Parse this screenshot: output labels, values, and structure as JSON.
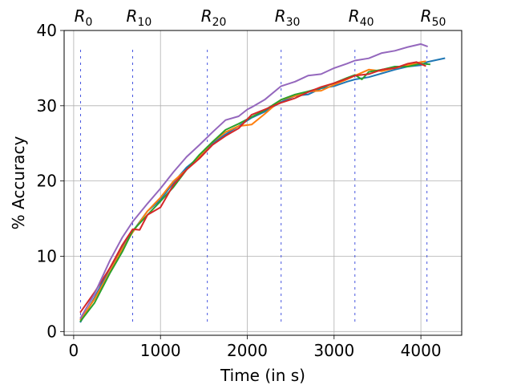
{
  "chart_data": {
    "type": "line",
    "xlabel": "Time (in s)",
    "ylabel": "% Accuracy",
    "xlim": [
      -110,
      4470
    ],
    "ylim": [
      -0.5,
      40
    ],
    "x_ticks": [
      0,
      1000,
      2000,
      3000,
      4000
    ],
    "y_ticks": [
      0,
      10,
      20,
      30,
      40
    ],
    "grid": true,
    "markers": [
      {
        "label": "R",
        "sub": "0",
        "x": 80
      },
      {
        "label": "R",
        "sub": "10",
        "x": 680
      },
      {
        "label": "R",
        "sub": "20",
        "x": 1540
      },
      {
        "label": "R",
        "sub": "30",
        "x": 2390
      },
      {
        "label": "R",
        "sub": "40",
        "x": 3240
      },
      {
        "label": "R",
        "sub": "50",
        "x": 4070
      }
    ],
    "series": [
      {
        "color": "#1f77b4",
        "x": [
          80,
          240,
          420,
          560,
          680,
          850,
          1000,
          1150,
          1300,
          1450,
          1600,
          1750,
          1900,
          2050,
          2200,
          2390,
          2550,
          2700,
          2850,
          3000,
          3150,
          3240,
          3400,
          3550,
          3700,
          3850,
          4000,
          4070,
          4150,
          4270
        ],
        "values": [
          1.3,
          4.5,
          8.5,
          11.2,
          13.3,
          16.0,
          17.5,
          19.8,
          21.8,
          23.2,
          25.0,
          26.2,
          27.3,
          28.4,
          29.2,
          30.5,
          31.3,
          31.5,
          32.3,
          32.6,
          33.2,
          33.5,
          33.8,
          34.3,
          34.8,
          35.2,
          35.4,
          35.8,
          36.0,
          36.3
        ]
      },
      {
        "color": "#ff7f0e",
        "x": [
          80,
          240,
          420,
          560,
          680,
          850,
          1000,
          1150,
          1300,
          1450,
          1600,
          1750,
          1900,
          2050,
          2200,
          2390,
          2550,
          2700,
          2850,
          3000,
          3150,
          3240,
          3400,
          3550,
          3700,
          3850,
          4000,
          4050
        ],
        "values": [
          1.6,
          4.3,
          8.0,
          11.0,
          13.2,
          16.0,
          17.8,
          20.0,
          21.5,
          23.3,
          25.2,
          26.5,
          27.3,
          27.5,
          28.9,
          30.8,
          31.3,
          31.9,
          32.0,
          32.8,
          33.5,
          34.0,
          34.8,
          34.6,
          35.0,
          35.4,
          35.8,
          35.9
        ]
      },
      {
        "color": "#2ca02c",
        "x": [
          80,
          240,
          420,
          560,
          680,
          850,
          1000,
          1150,
          1300,
          1450,
          1600,
          1750,
          1900,
          2050,
          2200,
          2390,
          2550,
          2700,
          2850,
          3000,
          3150,
          3240,
          3320,
          3400,
          3550,
          3700,
          3850,
          4000,
          4100
        ],
        "values": [
          1.4,
          3.8,
          7.8,
          10.6,
          13.4,
          15.5,
          17.3,
          19.2,
          21.5,
          23.5,
          25.2,
          26.8,
          27.6,
          28.5,
          29.4,
          30.8,
          31.5,
          31.9,
          32.4,
          33.0,
          33.7,
          34.1,
          33.5,
          34.5,
          34.8,
          35.2,
          35.2,
          35.6,
          35.5
        ]
      },
      {
        "color": "#d62728",
        "x": [
          80,
          240,
          420,
          560,
          680,
          760,
          850,
          1000,
          1150,
          1300,
          1450,
          1600,
          1750,
          1900,
          2050,
          2200,
          2390,
          2550,
          2700,
          2850,
          3000,
          3150,
          3240,
          3400,
          3550,
          3700,
          3850,
          3950,
          4050
        ],
        "values": [
          2.6,
          5.2,
          8.5,
          11.5,
          13.6,
          13.5,
          15.5,
          16.5,
          19.5,
          21.5,
          23.0,
          24.8,
          26.0,
          27.0,
          28.8,
          29.5,
          30.4,
          31.0,
          31.8,
          32.5,
          33.0,
          33.6,
          34.0,
          34.2,
          34.8,
          35.0,
          35.6,
          35.8,
          35.3
        ]
      },
      {
        "color": "#9467bd",
        "x": [
          80,
          240,
          420,
          560,
          680,
          850,
          1000,
          1150,
          1300,
          1450,
          1600,
          1750,
          1900,
          2000,
          2050,
          2200,
          2390,
          2550,
          2700,
          2850,
          3000,
          3150,
          3240,
          3400,
          3550,
          3700,
          3850,
          4000,
          4070
        ],
        "values": [
          1.8,
          5.0,
          9.5,
          12.5,
          14.6,
          17.0,
          19.0,
          21.2,
          23.2,
          24.8,
          26.5,
          28.1,
          28.6,
          29.5,
          29.8,
          30.8,
          32.6,
          33.2,
          34.0,
          34.2,
          35.0,
          35.6,
          36.0,
          36.3,
          37.0,
          37.3,
          37.8,
          38.2,
          37.9
        ]
      }
    ]
  }
}
